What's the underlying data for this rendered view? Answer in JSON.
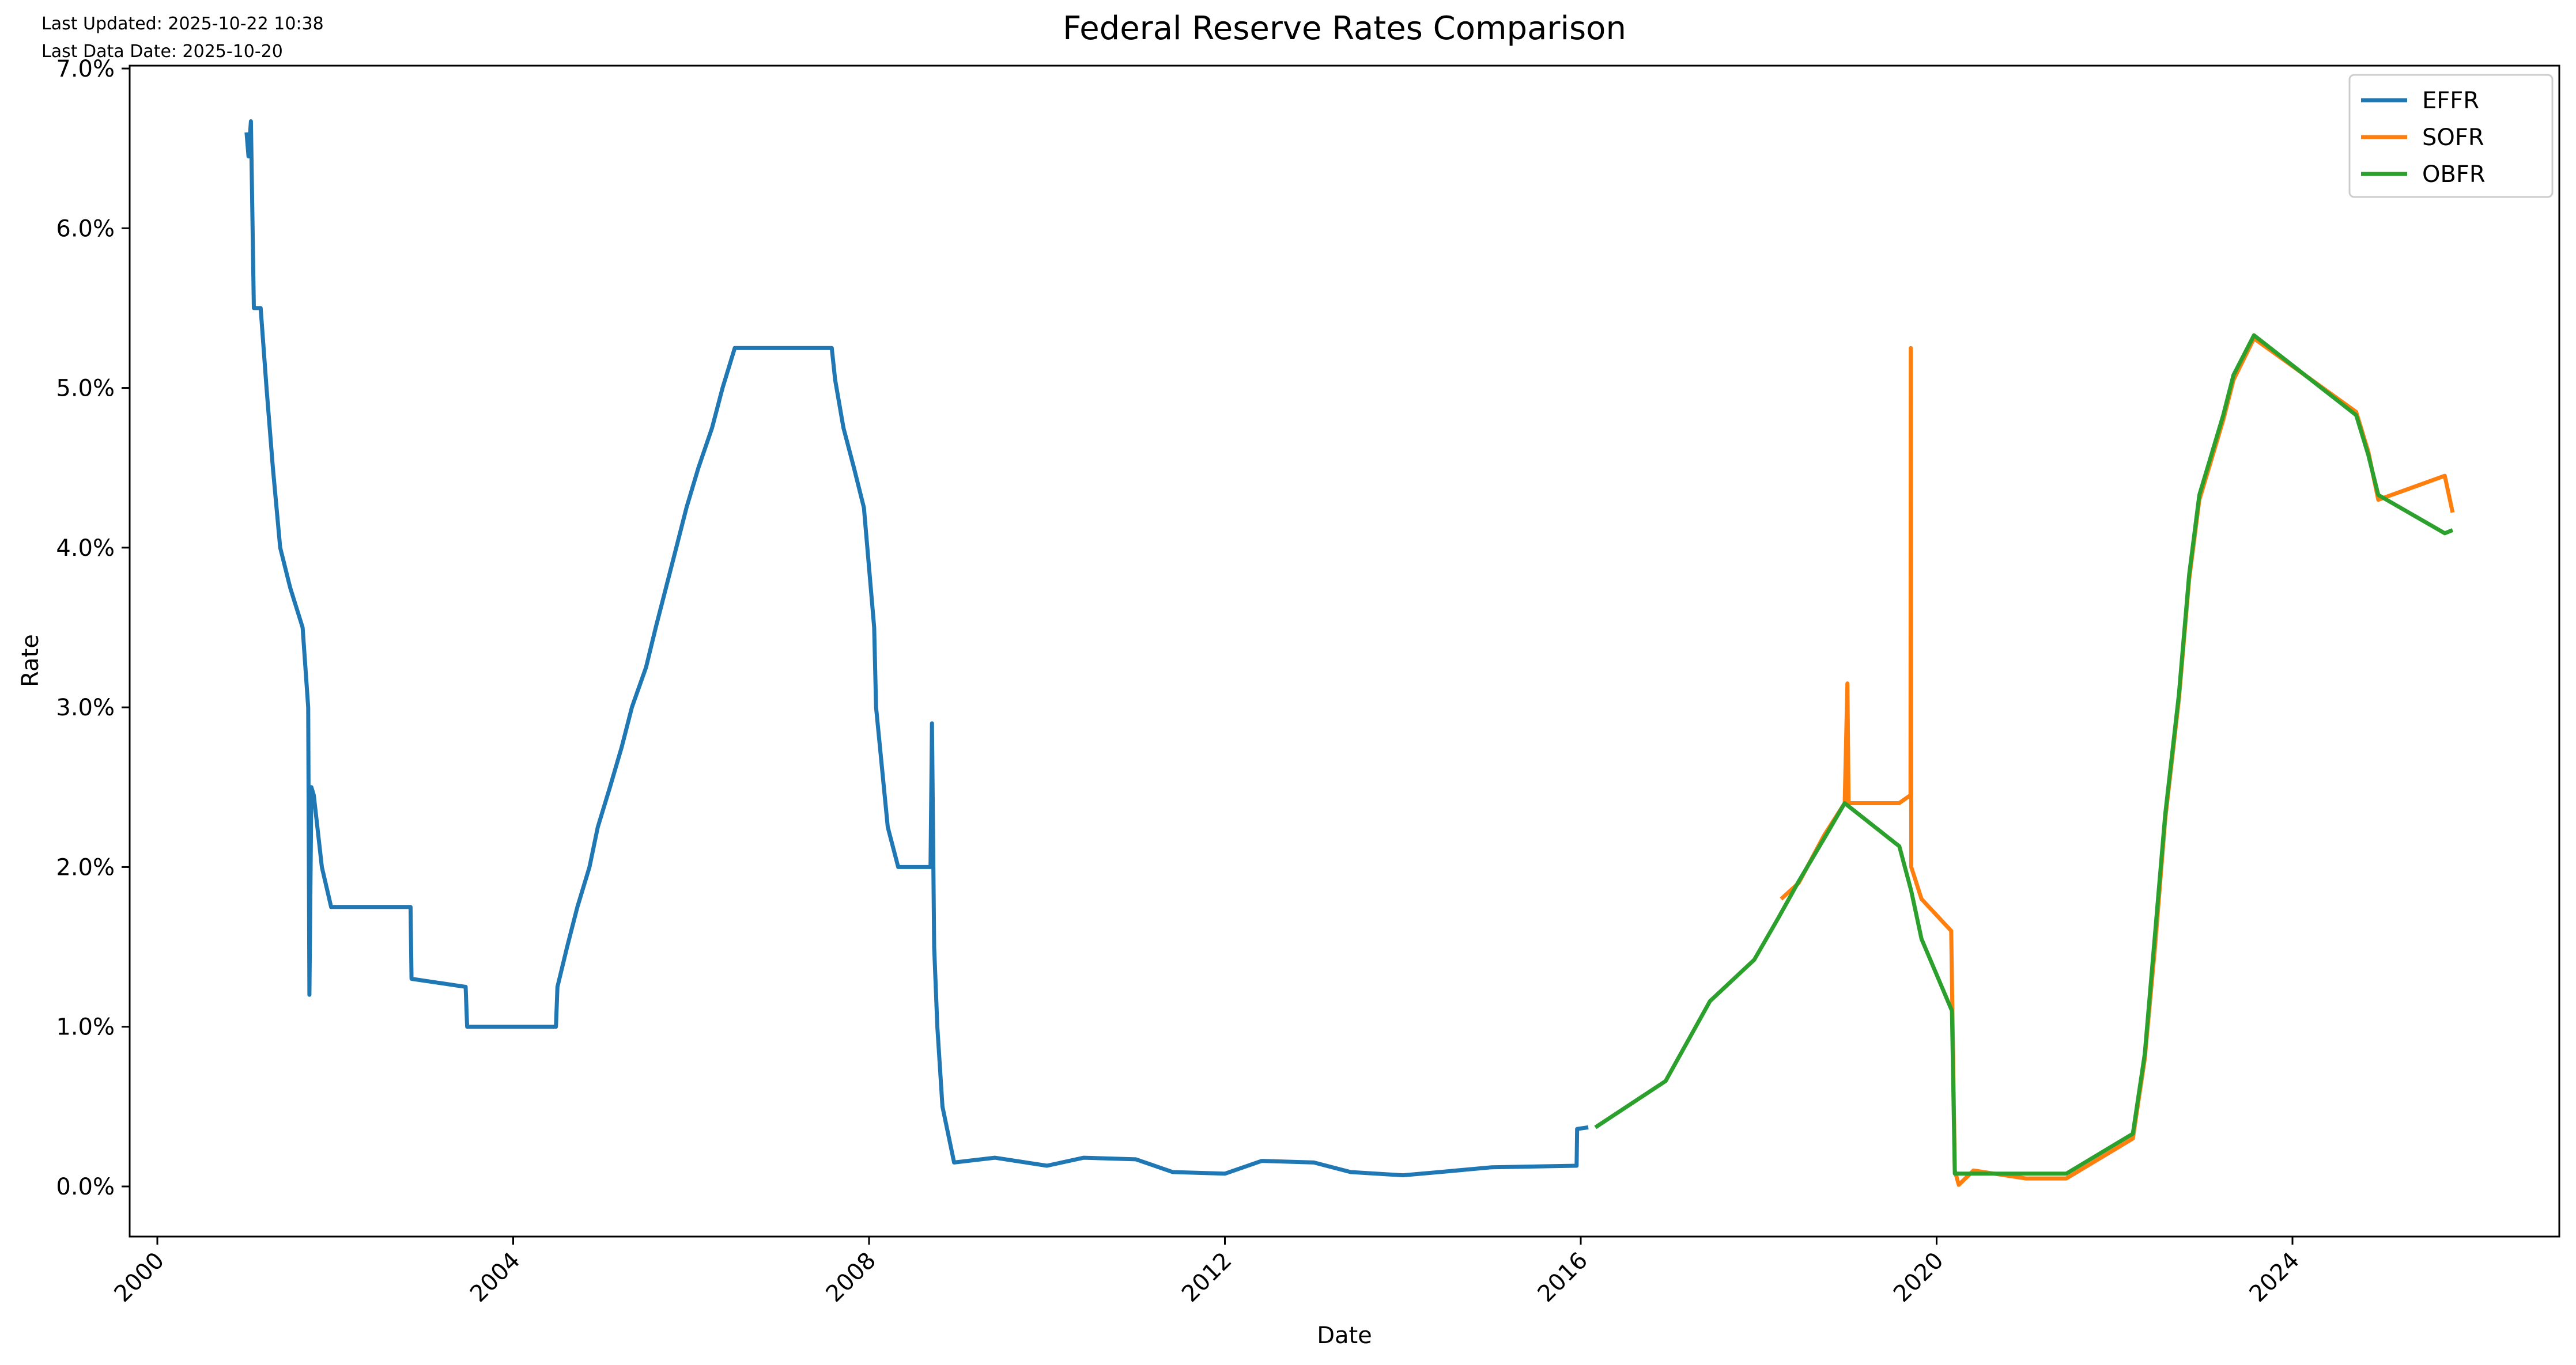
{
  "header": {
    "last_updated": "Last Updated: 2025-10-22 10:38",
    "last_data_date": "Last Data Date: 2025-10-20"
  },
  "chart_data": {
    "type": "line",
    "title": "Federal Reserve Rates Comparison",
    "xlabel": "Date",
    "ylabel": "Rate",
    "xlim": [
      "2000-01-01",
      "2025-10-20"
    ],
    "ylim": [
      -0.3,
      7.0
    ],
    "x_ticks": [
      "2000",
      "2004",
      "2008",
      "2012",
      "2016",
      "2020",
      "2024"
    ],
    "y_ticks": [
      "0.0%",
      "1.0%",
      "2.0%",
      "3.0%",
      "4.0%",
      "5.0%",
      "6.0%",
      "7.0%"
    ],
    "grid": false,
    "legend_position": "top-right",
    "series": [
      {
        "name": "EFFR",
        "color": "#1f77b4",
        "points": [
          [
            "2001-01-02",
            6.6
          ],
          [
            "2001-01-10",
            6.45
          ],
          [
            "2001-01-20",
            6.67
          ],
          [
            "2001-02-01",
            5.5
          ],
          [
            "2001-03-01",
            5.5
          ],
          [
            "2001-03-25",
            5.0
          ],
          [
            "2001-04-20",
            4.5
          ],
          [
            "2001-05-20",
            4.0
          ],
          [
            "2001-06-30",
            3.75
          ],
          [
            "2001-08-20",
            3.5
          ],
          [
            "2001-09-12",
            3.0
          ],
          [
            "2001-09-17",
            1.2
          ],
          [
            "2001-09-25",
            2.5
          ],
          [
            "2001-10-05",
            2.45
          ],
          [
            "2001-11-07",
            2.0
          ],
          [
            "2001-12-15",
            1.75
          ],
          [
            "2002-06-01",
            1.75
          ],
          [
            "2002-11-06",
            1.75
          ],
          [
            "2002-11-10",
            1.3
          ],
          [
            "2003-06-20",
            1.25
          ],
          [
            "2003-06-26",
            1.0
          ],
          [
            "2004-06-25",
            1.0
          ],
          [
            "2004-07-01",
            1.25
          ],
          [
            "2004-08-10",
            1.5
          ],
          [
            "2004-09-21",
            1.75
          ],
          [
            "2004-11-10",
            2.0
          ],
          [
            "2004-12-14",
            2.25
          ],
          [
            "2005-02-02",
            2.5
          ],
          [
            "2005-03-22",
            2.75
          ],
          [
            "2005-05-03",
            3.0
          ],
          [
            "2005-06-30",
            3.25
          ],
          [
            "2005-08-09",
            3.5
          ],
          [
            "2005-09-20",
            3.75
          ],
          [
            "2005-11-01",
            4.0
          ],
          [
            "2005-12-13",
            4.25
          ],
          [
            "2006-01-31",
            4.5
          ],
          [
            "2006-03-28",
            4.75
          ],
          [
            "2006-05-10",
            5.0
          ],
          [
            "2006-06-29",
            5.25
          ],
          [
            "2007-08-01",
            5.25
          ],
          [
            "2007-08-15",
            5.05
          ],
          [
            "2007-09-18",
            4.75
          ],
          [
            "2007-10-31",
            4.5
          ],
          [
            "2007-12-11",
            4.25
          ],
          [
            "2008-01-22",
            3.5
          ],
          [
            "2008-01-30",
            3.0
          ],
          [
            "2008-03-18",
            2.25
          ],
          [
            "2008-04-30",
            2.0
          ],
          [
            "2008-09-10",
            2.0
          ],
          [
            "2008-09-16",
            2.9
          ],
          [
            "2008-09-25",
            1.5
          ],
          [
            "2008-10-08",
            1.0
          ],
          [
            "2008-10-29",
            0.5
          ],
          [
            "2008-12-16",
            0.15
          ],
          [
            "2009-06-01",
            0.18
          ],
          [
            "2010-01-01",
            0.13
          ],
          [
            "2010-06-01",
            0.18
          ],
          [
            "2011-01-01",
            0.17
          ],
          [
            "2011-06-01",
            0.09
          ],
          [
            "2012-01-01",
            0.08
          ],
          [
            "2012-06-01",
            0.16
          ],
          [
            "2013-01-01",
            0.15
          ],
          [
            "2013-06-01",
            0.09
          ],
          [
            "2014-01-01",
            0.07
          ],
          [
            "2014-06-01",
            0.09
          ],
          [
            "2015-01-01",
            0.12
          ],
          [
            "2015-12-15",
            0.13
          ],
          [
            "2015-12-17",
            0.36
          ],
          [
            "2016-02-01",
            0.37
          ]
        ]
      },
      {
        "name": "SOFR",
        "color": "#ff7f0e",
        "points": [
          [
            "2018-04-03",
            1.8
          ],
          [
            "2018-06-14",
            1.9
          ],
          [
            "2018-09-27",
            2.2
          ],
          [
            "2018-12-20",
            2.4
          ],
          [
            "2018-12-31",
            3.15
          ],
          [
            "2019-01-05",
            2.4
          ],
          [
            "2019-07-31",
            2.4
          ],
          [
            "2019-09-16",
            2.45
          ],
          [
            "2019-09-17",
            5.25
          ],
          [
            "2019-09-19",
            2.0
          ],
          [
            "2019-10-31",
            1.8
          ],
          [
            "2020-03-01",
            1.6
          ],
          [
            "2020-03-16",
            0.1
          ],
          [
            "2020-04-01",
            0.01
          ],
          [
            "2020-06-01",
            0.1
          ],
          [
            "2021-01-01",
            0.05
          ],
          [
            "2021-06-17",
            0.05
          ],
          [
            "2022-03-17",
            0.3
          ],
          [
            "2022-05-05",
            0.8
          ],
          [
            "2022-06-16",
            1.5
          ],
          [
            "2022-07-28",
            2.3
          ],
          [
            "2022-09-22",
            3.05
          ],
          [
            "2022-11-03",
            3.8
          ],
          [
            "2022-12-15",
            4.3
          ],
          [
            "2023-02-02",
            4.55
          ],
          [
            "2023-03-23",
            4.8
          ],
          [
            "2023-05-04",
            5.05
          ],
          [
            "2023-07-27",
            5.31
          ],
          [
            "2024-09-19",
            4.85
          ],
          [
            "2024-11-08",
            4.6
          ],
          [
            "2024-12-19",
            4.3
          ],
          [
            "2025-09-18",
            4.45
          ],
          [
            "2025-10-20",
            4.22
          ]
        ]
      },
      {
        "name": "OBFR",
        "color": "#2ca02c",
        "points": [
          [
            "2016-03-01",
            0.37
          ],
          [
            "2016-12-15",
            0.66
          ],
          [
            "2017-03-16",
            0.91
          ],
          [
            "2017-06-15",
            1.16
          ],
          [
            "2017-12-14",
            1.42
          ],
          [
            "2018-03-22",
            1.68
          ],
          [
            "2018-06-14",
            1.91
          ],
          [
            "2018-09-27",
            2.18
          ],
          [
            "2018-12-20",
            2.4
          ],
          [
            "2019-08-01",
            2.13
          ],
          [
            "2019-09-19",
            1.85
          ],
          [
            "2019-10-31",
            1.55
          ],
          [
            "2020-03-04",
            1.1
          ],
          [
            "2020-03-16",
            0.08
          ],
          [
            "2021-06-17",
            0.08
          ],
          [
            "2022-03-17",
            0.33
          ],
          [
            "2022-05-05",
            0.83
          ],
          [
            "2022-06-16",
            1.58
          ],
          [
            "2022-07-28",
            2.33
          ],
          [
            "2022-09-22",
            3.08
          ],
          [
            "2022-11-03",
            3.83
          ],
          [
            "2022-12-15",
            4.33
          ],
          [
            "2023-02-02",
            4.58
          ],
          [
            "2023-03-23",
            4.83
          ],
          [
            "2023-05-04",
            5.08
          ],
          [
            "2023-07-27",
            5.33
          ],
          [
            "2024-09-19",
            4.83
          ],
          [
            "2024-11-08",
            4.58
          ],
          [
            "2024-12-19",
            4.33
          ],
          [
            "2025-09-18",
            4.09
          ],
          [
            "2025-10-20",
            4.11
          ]
        ]
      }
    ]
  }
}
